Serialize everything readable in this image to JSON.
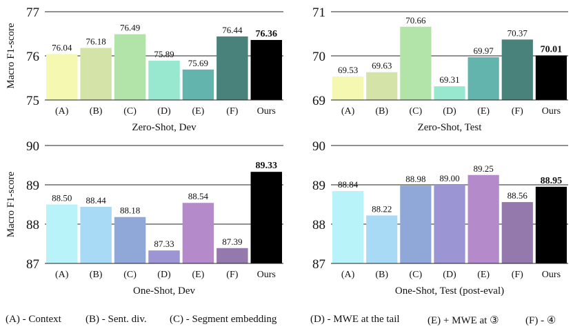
{
  "chart_data": [
    {
      "type": "bar",
      "title": "Zero-Shot, Dev",
      "ylabel": "Macro F1-score",
      "categories": [
        "(A)",
        "(B)",
        "(C)",
        "(D)",
        "(E)",
        "(F)",
        "Ours"
      ],
      "values": [
        76.04,
        76.18,
        76.49,
        75.89,
        75.69,
        76.44,
        76.36
      ],
      "value_labels": [
        "76.04",
        "76.18",
        "76.49",
        "75.89",
        "75.69",
        "76.44",
        "76.36"
      ],
      "ylim": [
        75,
        77
      ],
      "yticks": [
        "75",
        "76",
        "77"
      ],
      "highlight_index": 6
    },
    {
      "type": "bar",
      "title": "Zero-Shot, Test",
      "ylabel": "",
      "categories": [
        "(A)",
        "(B)",
        "(C)",
        "(D)",
        "(E)",
        "(F)",
        "Ours"
      ],
      "values": [
        69.53,
        69.63,
        70.66,
        69.31,
        69.97,
        70.37,
        70.01
      ],
      "value_labels": [
        "69.53",
        "69.63",
        "70.66",
        "69.31",
        "69.97",
        "70.37",
        "70.01"
      ],
      "ylim": [
        69,
        71
      ],
      "yticks": [
        "69",
        "70",
        "71"
      ],
      "highlight_index": 6
    },
    {
      "type": "bar",
      "title": "One-Shot, Dev",
      "ylabel": "Macro F1-score",
      "categories": [
        "(A)",
        "(B)",
        "(C)",
        "(D)",
        "(E)",
        "(F)",
        "Ours"
      ],
      "values": [
        88.5,
        88.44,
        88.18,
        87.33,
        88.54,
        87.39,
        89.33
      ],
      "value_labels": [
        "88.50",
        "88.44",
        "88.18",
        "87.33",
        "88.54",
        "87.39",
        "89.33"
      ],
      "ylim": [
        87,
        90
      ],
      "yticks": [
        "87",
        "88",
        "89",
        "90"
      ],
      "highlight_index": 6
    },
    {
      "type": "bar",
      "title": "One-Shot, Test (post-eval)",
      "ylabel": "",
      "categories": [
        "(A)",
        "(B)",
        "(C)",
        "(D)",
        "(E)",
        "(F)",
        "Ours"
      ],
      "values": [
        88.84,
        88.22,
        88.98,
        89.0,
        89.25,
        88.56,
        88.95
      ],
      "value_labels": [
        "88.84",
        "88.22",
        "88.98",
        "89.00",
        "89.25",
        "88.56",
        "88.95"
      ],
      "ylim": [
        87,
        90
      ],
      "yticks": [
        "87",
        "88",
        "89",
        "90"
      ],
      "highlight_index": 6
    }
  ],
  "palettes": {
    "zero_shot": [
      "#f4f8b0",
      "#d4e4a8",
      "#b2e3a9",
      "#98e8cf",
      "#63b4ac",
      "#48827b",
      "#000000"
    ],
    "one_shot": [
      "#b9f3fa",
      "#a9daf5",
      "#8fa8d8",
      "#9b95d4",
      "#b58acb",
      "#9379ac",
      "#000000"
    ]
  },
  "legend": [
    {
      "marker": "(A)",
      "text": " - Context"
    },
    {
      "marker": "(B)",
      "text": " - Sent. div."
    },
    {
      "marker": "(C)",
      "text": " - Segment embedding"
    },
    {
      "marker": "(D)",
      "text": " - MWE at the tail"
    },
    {
      "marker": "(E)",
      "text": " + MWE at ③"
    },
    {
      "marker": "(F)",
      "text": " - ④"
    }
  ]
}
